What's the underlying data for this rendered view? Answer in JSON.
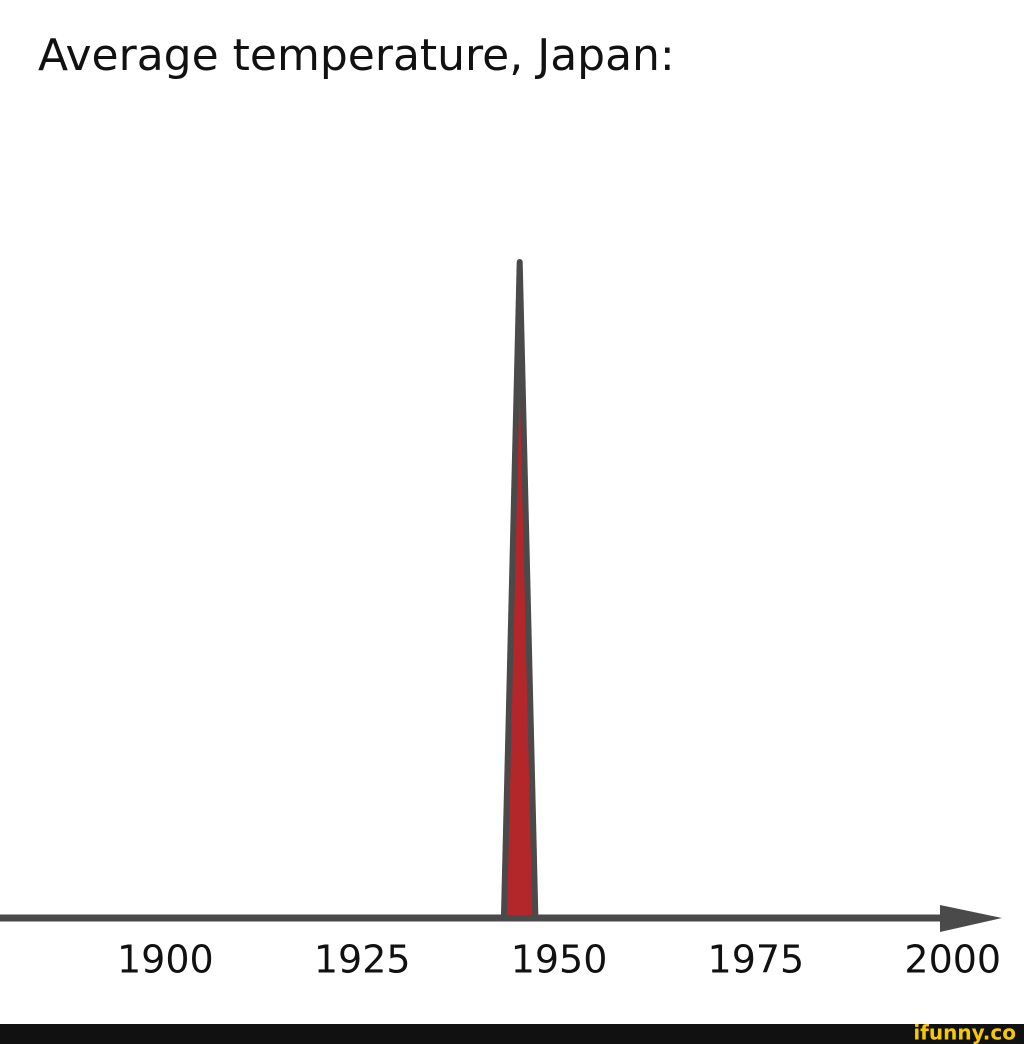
{
  "chart_data": {
    "type": "area",
    "title": "Average temperature, Japan:",
    "x": [
      1943,
      1945,
      1947
    ],
    "values": [
      0,
      1,
      0
    ],
    "color": "#b3262a",
    "outline": "#4a4a4a",
    "xlim": [
      1879,
      2006
    ],
    "xticks": [
      1900,
      1925,
      1950,
      1975,
      2000
    ],
    "ylim": [
      0,
      1
    ]
  },
  "watermark": "ifunny.co"
}
